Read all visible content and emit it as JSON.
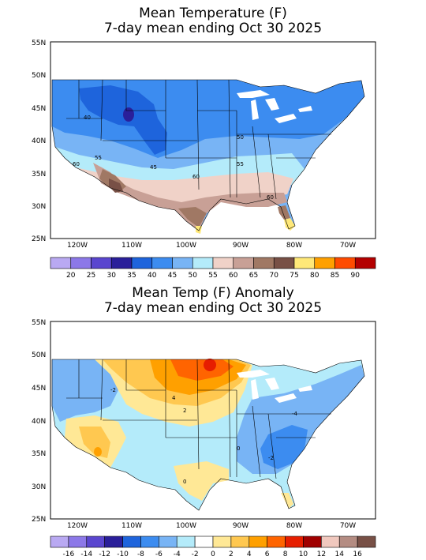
{
  "panels": [
    {
      "title_line1": "Mean Temperature (F)",
      "title_line2": "7-day mean ending Oct 30 2025",
      "lat_labels": [
        "55N",
        "50N",
        "45N",
        "40N",
        "35N",
        "30N",
        "25N"
      ],
      "lon_labels": [
        "120W",
        "110W",
        "100W",
        "90W",
        "80W",
        "70W"
      ],
      "contour_labels": [
        {
          "text": "40"
        },
        {
          "text": "50"
        },
        {
          "text": "60"
        },
        {
          "text": "55"
        },
        {
          "text": "45"
        },
        {
          "text": "60"
        },
        {
          "text": "55"
        },
        {
          "text": "60"
        }
      ],
      "colorbar": {
        "colors": [
          "#b9a9f2",
          "#8c78e8",
          "#5a46cf",
          "#2a1f9a",
          "#1e64dc",
          "#3c8cf0",
          "#78b4f5",
          "#b4ebfa",
          "#f0d2c8",
          "#c8a096",
          "#a07864",
          "#785046",
          "#ffe878",
          "#ffa000",
          "#ff4b00",
          "#b40000"
        ],
        "labels": [
          "20",
          "25",
          "30",
          "35",
          "40",
          "45",
          "50",
          "55",
          "60",
          "65",
          "70",
          "75",
          "80",
          "85",
          "90"
        ]
      }
    },
    {
      "title_line1": "Mean Temp (F) Anomaly",
      "title_line2": "7-day mean ending Oct 30 2025",
      "lat_labels": [
        "55N",
        "50N",
        "45N",
        "40N",
        "35N",
        "30N",
        "25N"
      ],
      "lon_labels": [
        "120W",
        "110W",
        "100W",
        "90W",
        "80W",
        "70W"
      ],
      "contour_labels": [
        {
          "text": "-2"
        },
        {
          "text": "4"
        },
        {
          "text": "2"
        },
        {
          "text": "-4"
        },
        {
          "text": "0"
        },
        {
          "text": "-2"
        },
        {
          "text": "0"
        }
      ],
      "colorbar": {
        "colors": [
          "#b9a9f2",
          "#8c78e8",
          "#5a46cf",
          "#2a1f9a",
          "#1e64dc",
          "#3c8cf0",
          "#78b4f5",
          "#b4ebfa",
          "#ffffff",
          "#ffe896",
          "#ffc850",
          "#ffa000",
          "#ff6400",
          "#e61e00",
          "#a00000",
          "#f0c8be",
          "#b48c82",
          "#785046"
        ],
        "labels": [
          "-16",
          "-14",
          "-12",
          "-10",
          "-8",
          "-6",
          "-4",
          "-2",
          "0",
          "2",
          "4",
          "6",
          "8",
          "10",
          "12",
          "14",
          "16"
        ]
      }
    }
  ]
}
